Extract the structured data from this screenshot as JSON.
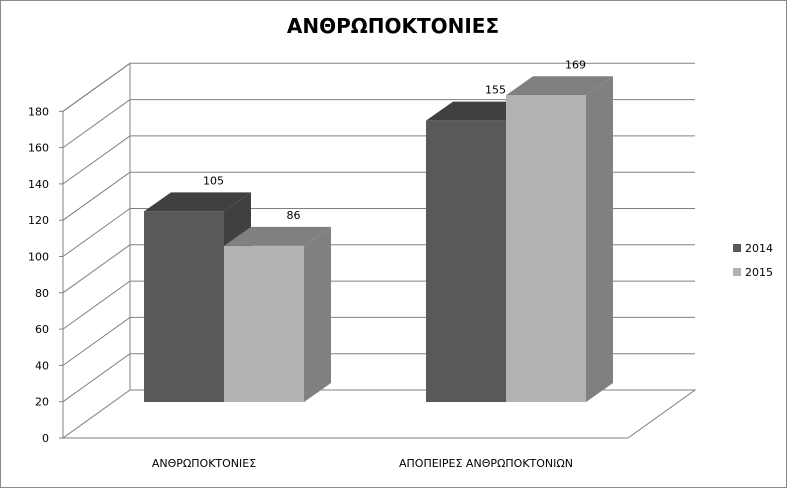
{
  "chart_data": {
    "type": "bar",
    "title": "ΑΝΘΡΩΠΟΚΤΟΝΙΕΣ",
    "xlabel": "",
    "ylabel": "",
    "categories": [
      "ΑΝΘΡΩΠΟΚΤΟΝΙΕΣ",
      "ΑΠΟΠΕΙΡΕΣ ΑΝΘΡΩΠΟΚΤΟΝΙΩΝ"
    ],
    "series": [
      {
        "name": "2014",
        "values": [
          105,
          155
        ],
        "color": "#595959"
      },
      {
        "name": "2015",
        "values": [
          86,
          169
        ],
        "color": "#b2b2b2"
      }
    ],
    "ylim": [
      0,
      180
    ],
    "yticks": [
      0,
      20,
      40,
      60,
      80,
      100,
      120,
      140,
      160,
      180
    ],
    "grid": true,
    "legend": "right",
    "data_labels": true,
    "style": "3d-clustered-column"
  }
}
